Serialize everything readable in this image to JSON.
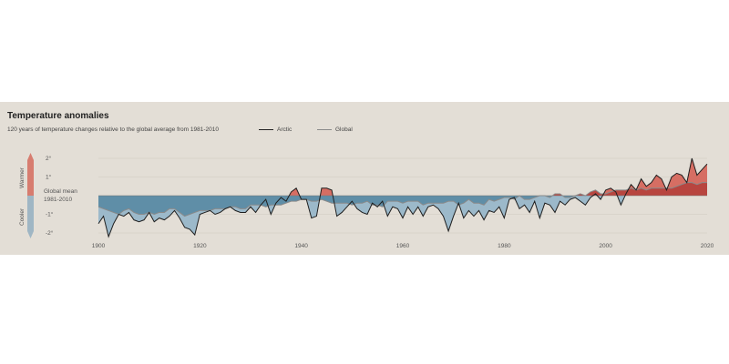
{
  "chart_data": {
    "type": "area",
    "title": "Temperature anomalies",
    "subtitle": "120 years of temperature changes relative to the global average from 1981-2010",
    "baseline_label": [
      "Global mean",
      "1981-2010"
    ],
    "warmer_label": "Warmer",
    "cooler_label": "Cooler",
    "x_ticks": [
      "1900",
      "1920",
      "1940",
      "1960",
      "1980",
      "2000",
      "2020"
    ],
    "y_ticks": [
      {
        "value": 2,
        "label": "2°"
      },
      {
        "value": 1,
        "label": "1°"
      },
      {
        "value": -1,
        "label": "-1°"
      },
      {
        "value": -2,
        "label": "-2°"
      }
    ],
    "xlim": [
      1898,
      2021
    ],
    "ylim": [
      -2.2,
      2.2
    ],
    "grid": true,
    "colors": {
      "warm_fill": "#b8453f",
      "warm_fill_light": "#d66e63",
      "cool_fill": "#5f8ea7",
      "cool_fill_light": "#9cb9ca",
      "arctic_line": "#1f1f1f",
      "global_line": "#8a8a8a",
      "warmer_arrow": "#d77c6f",
      "cooler_arrow": "#9fb6c4"
    },
    "series": [
      {
        "name": "Arctic",
        "x": [
          1900,
          1901,
          1902,
          1903,
          1904,
          1905,
          1906,
          1907,
          1908,
          1909,
          1910,
          1911,
          1912,
          1913,
          1914,
          1915,
          1916,
          1917,
          1918,
          1919,
          1920,
          1921,
          1922,
          1923,
          1924,
          1925,
          1926,
          1927,
          1928,
          1929,
          1930,
          1931,
          1932,
          1933,
          1934,
          1935,
          1936,
          1937,
          1938,
          1939,
          1940,
          1941,
          1942,
          1943,
          1944,
          1945,
          1946,
          1947,
          1948,
          1949,
          1950,
          1951,
          1952,
          1953,
          1954,
          1955,
          1956,
          1957,
          1958,
          1959,
          1960,
          1961,
          1962,
          1963,
          1964,
          1965,
          1966,
          1967,
          1968,
          1969,
          1970,
          1971,
          1972,
          1973,
          1974,
          1975,
          1976,
          1977,
          1978,
          1979,
          1980,
          1981,
          1982,
          1983,
          1984,
          1985,
          1986,
          1987,
          1988,
          1989,
          1990,
          1991,
          1992,
          1993,
          1994,
          1995,
          1996,
          1997,
          1998,
          1999,
          2000,
          2001,
          2002,
          2003,
          2004,
          2005,
          2006,
          2007,
          2008,
          2009,
          2010,
          2011,
          2012,
          2013,
          2014,
          2015,
          2016,
          2017,
          2018,
          2019,
          2020
        ],
        "values": [
          -1.5,
          -1.1,
          -2.2,
          -1.5,
          -1.0,
          -1.1,
          -0.9,
          -1.3,
          -1.4,
          -1.3,
          -0.9,
          -1.4,
          -1.2,
          -1.3,
          -1.1,
          -0.8,
          -1.2,
          -1.7,
          -1.8,
          -2.1,
          -1.0,
          -0.9,
          -0.8,
          -1.0,
          -0.9,
          -0.7,
          -0.6,
          -0.8,
          -0.9,
          -0.9,
          -0.6,
          -0.9,
          -0.5,
          -0.2,
          -1.0,
          -0.4,
          -0.1,
          -0.3,
          0.2,
          0.4,
          -0.2,
          -0.2,
          -1.2,
          -1.1,
          0.4,
          0.4,
          0.3,
          -1.1,
          -0.9,
          -0.6,
          -0.3,
          -0.7,
          -0.9,
          -1.0,
          -0.4,
          -0.6,
          -0.3,
          -1.1,
          -0.6,
          -0.7,
          -1.2,
          -0.6,
          -1.0,
          -0.6,
          -1.1,
          -0.6,
          -0.5,
          -0.7,
          -1.1,
          -1.9,
          -1.1,
          -0.4,
          -1.2,
          -0.8,
          -1.1,
          -0.8,
          -1.3,
          -0.8,
          -0.9,
          -0.6,
          -1.2,
          -0.2,
          -0.1,
          -0.7,
          -0.5,
          -0.9,
          -0.3,
          -1.2,
          -0.4,
          -0.5,
          -0.9,
          -0.3,
          -0.5,
          -0.2,
          -0.1,
          -0.3,
          -0.5,
          -0.1,
          0.1,
          -0.2,
          0.3,
          0.4,
          0.2,
          -0.5,
          0.1,
          0.6,
          0.3,
          0.9,
          0.5,
          0.7,
          1.1,
          0.9,
          0.3,
          1.0,
          1.2,
          1.1,
          0.7,
          2.0,
          1.1,
          1.4,
          1.7
        ]
      },
      {
        "name": "Global",
        "x": [
          1900,
          1901,
          1902,
          1903,
          1904,
          1905,
          1906,
          1907,
          1908,
          1909,
          1910,
          1911,
          1912,
          1913,
          1914,
          1915,
          1916,
          1917,
          1918,
          1919,
          1920,
          1921,
          1922,
          1923,
          1924,
          1925,
          1926,
          1927,
          1928,
          1929,
          1930,
          1931,
          1932,
          1933,
          1934,
          1935,
          1936,
          1937,
          1938,
          1939,
          1940,
          1941,
          1942,
          1943,
          1944,
          1945,
          1946,
          1947,
          1948,
          1949,
          1950,
          1951,
          1952,
          1953,
          1954,
          1955,
          1956,
          1957,
          1958,
          1959,
          1960,
          1961,
          1962,
          1963,
          1964,
          1965,
          1966,
          1967,
          1968,
          1969,
          1970,
          1971,
          1972,
          1973,
          1974,
          1975,
          1976,
          1977,
          1978,
          1979,
          1980,
          1981,
          1982,
          1983,
          1984,
          1985,
          1986,
          1987,
          1988,
          1989,
          1990,
          1991,
          1992,
          1993,
          1994,
          1995,
          1996,
          1997,
          1998,
          1999,
          2000,
          2001,
          2002,
          2003,
          2004,
          2005,
          2006,
          2007,
          2008,
          2009,
          2010,
          2011,
          2012,
          2013,
          2014,
          2015,
          2016,
          2017,
          2018,
          2019,
          2020
        ],
        "values": [
          -0.6,
          -0.7,
          -0.8,
          -0.9,
          -1.0,
          -0.8,
          -0.7,
          -0.9,
          -1.0,
          -1.0,
          -0.9,
          -1.0,
          -0.9,
          -0.9,
          -0.7,
          -0.7,
          -0.9,
          -1.1,
          -1.0,
          -0.9,
          -0.8,
          -0.8,
          -0.8,
          -0.7,
          -0.7,
          -0.7,
          -0.6,
          -0.6,
          -0.7,
          -0.7,
          -0.5,
          -0.5,
          -0.5,
          -0.6,
          -0.5,
          -0.5,
          -0.5,
          -0.4,
          -0.3,
          -0.3,
          -0.2,
          -0.2,
          -0.3,
          -0.3,
          -0.2,
          -0.3,
          -0.4,
          -0.4,
          -0.4,
          -0.4,
          -0.5,
          -0.4,
          -0.4,
          -0.3,
          -0.5,
          -0.5,
          -0.6,
          -0.3,
          -0.3,
          -0.3,
          -0.4,
          -0.3,
          -0.3,
          -0.3,
          -0.5,
          -0.4,
          -0.4,
          -0.4,
          -0.4,
          -0.3,
          -0.3,
          -0.5,
          -0.4,
          -0.2,
          -0.4,
          -0.4,
          -0.5,
          -0.2,
          -0.3,
          -0.2,
          -0.1,
          -0.1,
          -0.2,
          0.0,
          -0.2,
          -0.2,
          -0.1,
          0.0,
          0.0,
          -0.1,
          0.1,
          0.1,
          -0.1,
          -0.1,
          0.0,
          0.1,
          0.0,
          0.2,
          0.3,
          0.1,
          0.1,
          0.2,
          0.3,
          0.3,
          0.3,
          0.4,
          0.3,
          0.4,
          0.3,
          0.4,
          0.4,
          0.4,
          0.4,
          0.4,
          0.5,
          0.6,
          0.7,
          0.7,
          0.6,
          0.7,
          0.7
        ]
      }
    ]
  }
}
